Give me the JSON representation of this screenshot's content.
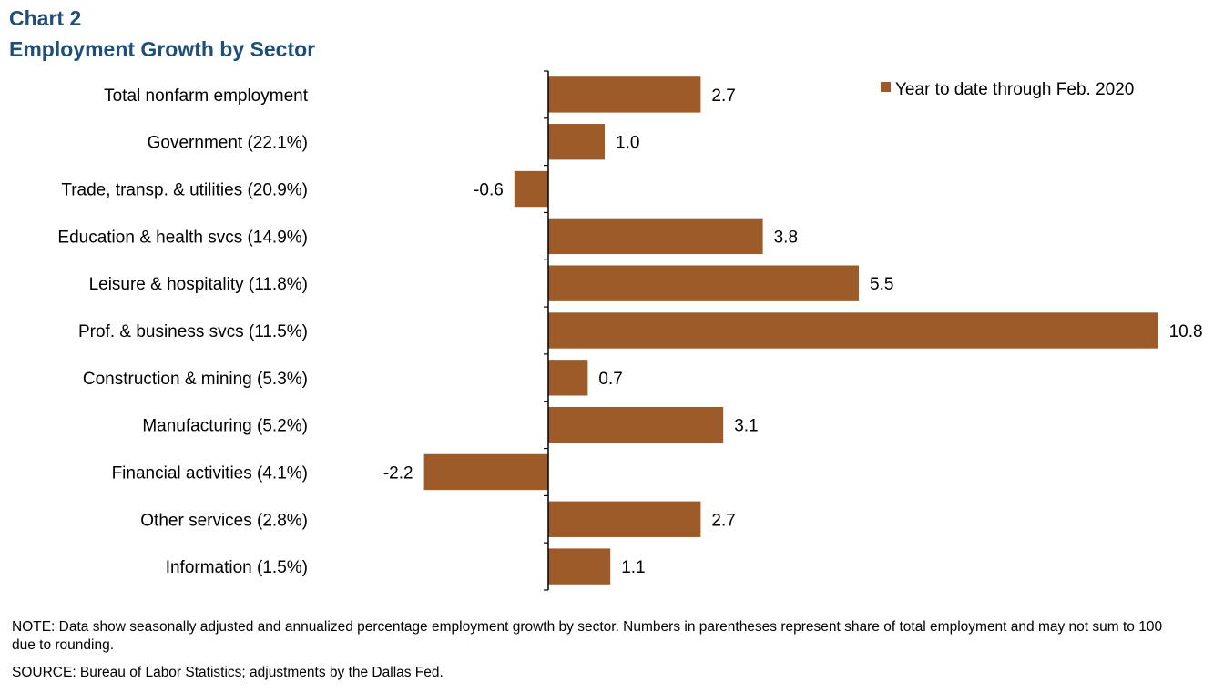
{
  "header": {
    "chart_label": "Chart 2",
    "title": "Employment  Growth  by  Sector"
  },
  "footer": {
    "note": "NOTE: Data show seasonally adjusted and annualized percentage employment growth by sector. Numbers in parentheses represent share of total employment and may not sum to 100 due to rounding.",
    "source": "SOURCE: Bureau of Labor Statistics; adjustments by the Dallas Fed."
  },
  "chart_data": {
    "type": "bar",
    "orientation": "horizontal",
    "title": "Employment  Growth  by  Sector",
    "categories": [
      "Total nonfarm employment",
      "Government (22.1%)",
      "Trade, transp. & utilities (20.9%)",
      "Education & health svcs (14.9%)",
      "Leisure & hospitality (11.8%)",
      "Prof. & business svcs (11.5%)",
      "Construction & mining (5.3%)",
      "Manufacturing (5.2%)",
      "Financial activities (4.1%)",
      "Other services (2.8%)",
      "Information (1.5%)"
    ],
    "series": [
      {
        "name": "Year to date through Feb. 2020",
        "values": [
          2.7,
          1.0,
          -0.6,
          3.8,
          5.5,
          10.8,
          0.7,
          3.1,
          -2.2,
          2.7,
          1.1
        ],
        "labels": [
          "2.7",
          "1.0",
          "-0.6",
          "3.8",
          "5.5",
          "10.8",
          "0.7",
          "3.1",
          "-2.2",
          "2.7",
          "1.1"
        ]
      }
    ],
    "xlim": [
      -2.2,
      10.8
    ],
    "legend": "top-right",
    "grid": false,
    "colors": {
      "bar": "#9c5b28",
      "title": "#1f4e79"
    }
  }
}
